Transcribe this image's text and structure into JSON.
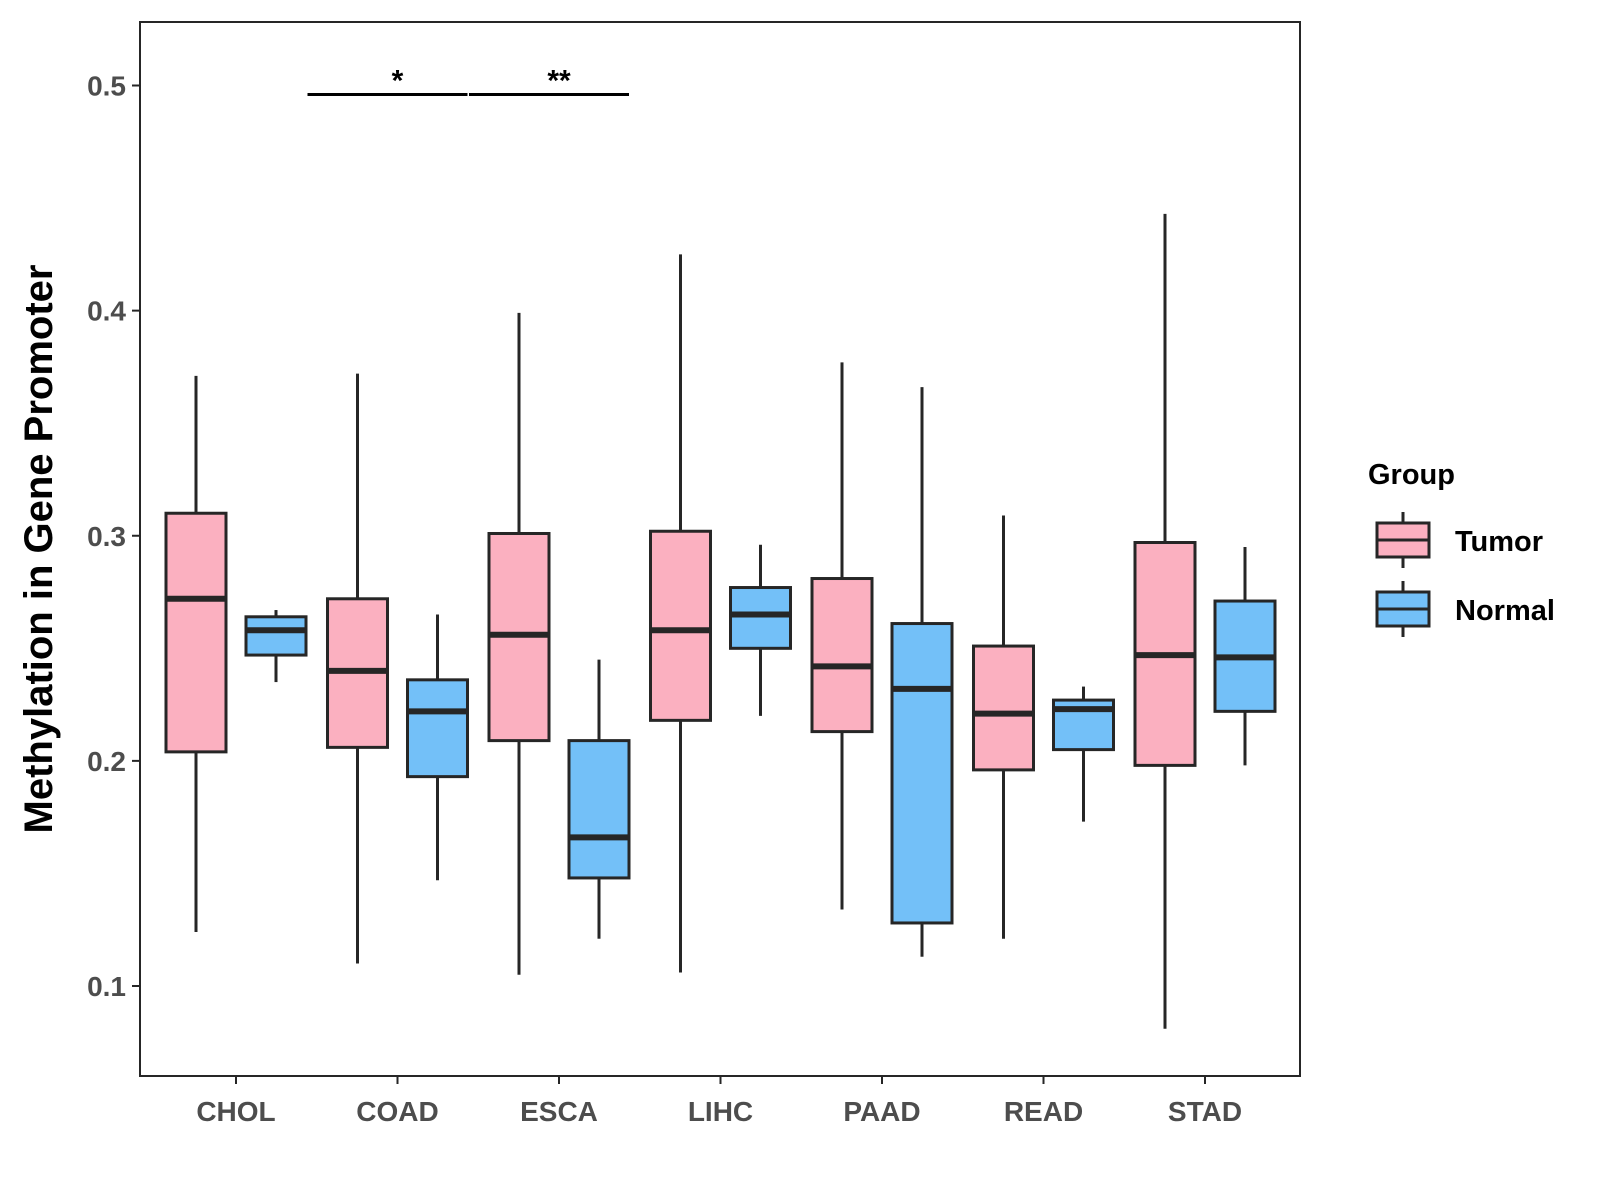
{
  "chart_data": {
    "type": "boxplot",
    "ylabel": "Methylation in Gene Promoter",
    "xlabel": "",
    "ylim": [
      0.06,
      0.53
    ],
    "yticks": [
      0.1,
      0.2,
      0.3,
      0.4,
      0.5
    ],
    "ytick_labels": [
      "0.1",
      "0.2",
      "0.3",
      "0.4",
      "0.5"
    ],
    "categories": [
      "CHOL",
      "COAD",
      "ESCA",
      "LIHC",
      "PAAD",
      "READ",
      "STAD"
    ],
    "legend": {
      "title": "Group",
      "position": "right"
    },
    "series": [
      {
        "name": "Tumor",
        "color": "#fbb0c0",
        "boxes": [
          {
            "whisker_low": 0.124,
            "q1": 0.204,
            "median": 0.272,
            "q3": 0.31,
            "whisker_high": 0.371
          },
          {
            "whisker_low": 0.11,
            "q1": 0.206,
            "median": 0.24,
            "q3": 0.272,
            "whisker_high": 0.372
          },
          {
            "whisker_low": 0.105,
            "q1": 0.209,
            "median": 0.256,
            "q3": 0.301,
            "whisker_high": 0.399
          },
          {
            "whisker_low": 0.106,
            "q1": 0.218,
            "median": 0.258,
            "q3": 0.302,
            "whisker_high": 0.425
          },
          {
            "whisker_low": 0.134,
            "q1": 0.213,
            "median": 0.242,
            "q3": 0.281,
            "whisker_high": 0.377
          },
          {
            "whisker_low": 0.121,
            "q1": 0.196,
            "median": 0.221,
            "q3": 0.251,
            "whisker_high": 0.309
          },
          {
            "whisker_low": 0.081,
            "q1": 0.198,
            "median": 0.247,
            "q3": 0.297,
            "whisker_high": 0.443
          }
        ]
      },
      {
        "name": "Normal",
        "color": "#73c0f8",
        "boxes": [
          {
            "whisker_low": 0.235,
            "q1": 0.247,
            "median": 0.258,
            "q3": 0.264,
            "whisker_high": 0.267
          },
          {
            "whisker_low": 0.147,
            "q1": 0.193,
            "median": 0.222,
            "q3": 0.236,
            "whisker_high": 0.265
          },
          {
            "whisker_low": 0.121,
            "q1": 0.148,
            "median": 0.166,
            "q3": 0.209,
            "whisker_high": 0.245
          },
          {
            "whisker_low": 0.22,
            "q1": 0.25,
            "median": 0.265,
            "q3": 0.277,
            "whisker_high": 0.296
          },
          {
            "whisker_low": 0.113,
            "q1": 0.128,
            "median": 0.232,
            "q3": 0.261,
            "whisker_high": 0.366
          },
          {
            "whisker_low": 0.173,
            "q1": 0.205,
            "median": 0.223,
            "q3": 0.227,
            "whisker_high": 0.233
          },
          {
            "whisker_low": 0.198,
            "q1": 0.222,
            "median": 0.246,
            "q3": 0.271,
            "whisker_high": 0.295
          }
        ]
      }
    ],
    "annotations": [
      {
        "category": "COAD",
        "label": "*",
        "y": 0.496
      },
      {
        "category": "ESCA",
        "label": "**",
        "y": 0.496
      }
    ]
  },
  "colors": {
    "tumor": "#fbb0c0",
    "normal": "#73c0f8",
    "outline": "#262626",
    "axis_text": "#4d4d4d"
  }
}
